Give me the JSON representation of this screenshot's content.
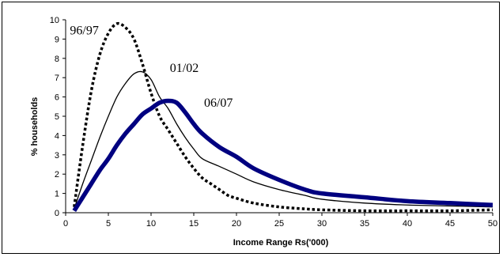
{
  "chart_data": {
    "type": "line",
    "title": "",
    "xlabel": "Income Range Rs('000)",
    "ylabel": "% households",
    "xlim": [
      0,
      50
    ],
    "ylim": [
      0,
      10
    ],
    "xticks": [
      0,
      5,
      10,
      15,
      20,
      25,
      30,
      35,
      40,
      45,
      50
    ],
    "yticks": [
      0,
      1,
      2,
      3,
      4,
      5,
      6,
      7,
      8,
      9,
      10
    ],
    "grid": false,
    "legend": "none",
    "series": [
      {
        "name": "96/97",
        "style": "dotted",
        "color": "#000000",
        "x": [
          1,
          2,
          3,
          4,
          5,
          6,
          7,
          8,
          9,
          10,
          11,
          12,
          13,
          14,
          15,
          16,
          17,
          18,
          19,
          20,
          22,
          25,
          28,
          30,
          35,
          40,
          45,
          50
        ],
        "y": [
          0.3,
          3.5,
          6.3,
          8.2,
          9.3,
          9.8,
          9.6,
          9.0,
          7.7,
          6.2,
          5.0,
          4.3,
          3.6,
          2.9,
          2.3,
          1.8,
          1.5,
          1.2,
          0.9,
          0.75,
          0.5,
          0.3,
          0.2,
          0.15,
          0.1,
          0.1,
          0.1,
          0.15
        ]
      },
      {
        "name": "01/02",
        "style": "solid",
        "color": "#000000",
        "x": [
          1,
          2,
          3,
          4,
          5,
          6,
          7,
          8,
          9,
          10,
          11,
          12,
          13,
          14,
          15,
          16,
          18,
          20,
          22,
          25,
          28,
          30,
          35,
          40,
          45,
          50
        ],
        "y": [
          0.2,
          1.5,
          2.7,
          3.9,
          5.0,
          6.0,
          6.7,
          7.2,
          7.3,
          6.9,
          6.0,
          5.4,
          4.6,
          3.9,
          3.3,
          2.8,
          2.4,
          2.0,
          1.6,
          1.2,
          0.9,
          0.7,
          0.5,
          0.4,
          0.35,
          0.3
        ]
      },
      {
        "name": "06/07",
        "style": "thick",
        "color": "#000080",
        "x": [
          1,
          2,
          3,
          4,
          5,
          6,
          7,
          8,
          9,
          10,
          11,
          12,
          13,
          14,
          15,
          16,
          18,
          20,
          22,
          25,
          28,
          30,
          35,
          40,
          45,
          50
        ],
        "y": [
          0.1,
          0.8,
          1.5,
          2.2,
          2.8,
          3.5,
          4.1,
          4.6,
          5.1,
          5.4,
          5.7,
          5.8,
          5.7,
          5.2,
          4.6,
          4.1,
          3.4,
          2.9,
          2.3,
          1.7,
          1.2,
          1.0,
          0.8,
          0.6,
          0.5,
          0.4
        ]
      }
    ],
    "annotations": [
      {
        "text": "96/97",
        "x": 0.5,
        "y": 9.25
      },
      {
        "text": "01/02",
        "x": 12.2,
        "y": 7.3
      },
      {
        "text": "06/07",
        "x": 16.2,
        "y": 5.5
      }
    ]
  }
}
